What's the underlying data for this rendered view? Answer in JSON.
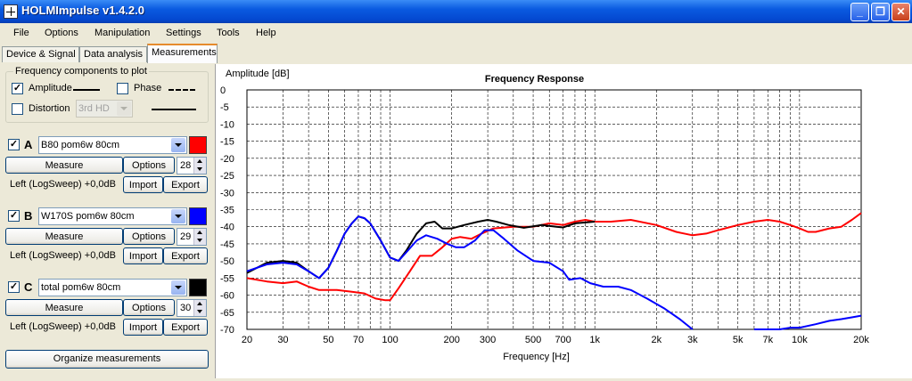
{
  "window": {
    "title": "HOLMImpulse  v1.4.2.0"
  },
  "menu": [
    "File",
    "Options",
    "Manipulation",
    "Settings",
    "Tools",
    "Help"
  ],
  "tabs": [
    "Device & Signal",
    "Data analysis",
    "Measurements"
  ],
  "components": {
    "title": "Frequency components to plot",
    "amplitude": {
      "label": "Amplitude",
      "checked": true
    },
    "phase": {
      "label": "Phase",
      "checked": false
    },
    "distortion": {
      "label": "Distortion",
      "checked": false,
      "select": "3rd HD"
    }
  },
  "measurements": [
    {
      "letter": "A",
      "checked": true,
      "name": "B80 pom6w 80cm",
      "color": "#ff0000",
      "measure_label": "Measure",
      "options_label": "Options",
      "spin": "28",
      "info": "Left (LogSweep) +0,0dB",
      "import_label": "Import",
      "export_label": "Export"
    },
    {
      "letter": "B",
      "checked": true,
      "name": "W170S pom6w 80cm",
      "color": "#0000ff",
      "measure_label": "Measure",
      "options_label": "Options",
      "spin": "29",
      "info": "Left (LogSweep) +0,0dB",
      "import_label": "Import",
      "export_label": "Export"
    },
    {
      "letter": "C",
      "checked": true,
      "name": "total pom6w 80cm",
      "color": "#000000",
      "measure_label": "Measure",
      "options_label": "Options",
      "spin": "30",
      "info": "Left (LogSweep) +0,0dB",
      "import_label": "Import",
      "export_label": "Export"
    }
  ],
  "organize_label": "Organize measurements",
  "chart_data": {
    "type": "line",
    "title": "Frequency Response",
    "xlabel": "Frequency [Hz]",
    "ylabel": "Amplitude [dB]",
    "xscale": "log",
    "xlim": [
      20,
      20000
    ],
    "ylim": [
      -70,
      0
    ],
    "grid": true,
    "xticks": [
      20,
      30,
      50,
      70,
      100,
      200,
      300,
      500,
      700,
      1000,
      2000,
      3000,
      5000,
      7000,
      10000,
      20000
    ],
    "xtick_labels": [
      "20",
      "30",
      "50",
      "70",
      "100",
      "200",
      "300",
      "500",
      "700",
      "1k",
      "2k",
      "3k",
      "5k",
      "7k",
      "10k",
      "20k"
    ],
    "yticks": [
      0,
      -5,
      -10,
      -15,
      -20,
      -25,
      -30,
      -35,
      -40,
      -45,
      -50,
      -55,
      -60,
      -65,
      -70
    ],
    "series": [
      {
        "name": "A",
        "color": "#ff0000",
        "points": [
          [
            20,
            -55
          ],
          [
            25,
            -56
          ],
          [
            30,
            -56.5
          ],
          [
            35,
            -56
          ],
          [
            40,
            -57.5
          ],
          [
            45,
            -58.5
          ],
          [
            55,
            -58.5
          ],
          [
            65,
            -59
          ],
          [
            75,
            -59.5
          ],
          [
            85,
            -61
          ],
          [
            95,
            -61.5
          ],
          [
            100,
            -61.5
          ],
          [
            110,
            -58
          ],
          [
            125,
            -53
          ],
          [
            140,
            -48.5
          ],
          [
            160,
            -48.5
          ],
          [
            180,
            -46
          ],
          [
            200,
            -43.5
          ],
          [
            220,
            -43
          ],
          [
            250,
            -43.5
          ],
          [
            280,
            -42
          ],
          [
            320,
            -40.5
          ],
          [
            350,
            -40.3
          ],
          [
            400,
            -40
          ],
          [
            500,
            -40
          ],
          [
            600,
            -39
          ],
          [
            700,
            -39.5
          ],
          [
            800,
            -38.5
          ],
          [
            900,
            -38
          ],
          [
            1000,
            -38.5
          ],
          [
            1200,
            -38.5
          ],
          [
            1500,
            -38
          ],
          [
            2000,
            -39.5
          ],
          [
            2500,
            -41.5
          ],
          [
            3000,
            -42.5
          ],
          [
            3500,
            -42
          ],
          [
            4000,
            -41
          ],
          [
            5000,
            -39.5
          ],
          [
            6000,
            -38.5
          ],
          [
            7000,
            -38
          ],
          [
            8000,
            -38.5
          ],
          [
            9000,
            -39.5
          ],
          [
            10000,
            -40.5
          ],
          [
            11000,
            -41.5
          ],
          [
            12000,
            -41.5
          ],
          [
            14000,
            -40.5
          ],
          [
            16000,
            -40
          ],
          [
            18000,
            -38
          ],
          [
            20000,
            -36
          ]
        ]
      },
      {
        "name": "B",
        "color": "#0000ff",
        "points": [
          [
            20,
            -53
          ],
          [
            25,
            -51
          ],
          [
            30,
            -50.5
          ],
          [
            35,
            -51
          ],
          [
            40,
            -53
          ],
          [
            45,
            -55
          ],
          [
            50,
            -52
          ],
          [
            55,
            -47
          ],
          [
            60,
            -42
          ],
          [
            65,
            -39
          ],
          [
            70,
            -37
          ],
          [
            75,
            -37.5
          ],
          [
            80,
            -39
          ],
          [
            90,
            -44
          ],
          [
            100,
            -49
          ],
          [
            110,
            -50
          ],
          [
            120,
            -47.5
          ],
          [
            135,
            -44
          ],
          [
            150,
            -42.5
          ],
          [
            170,
            -43.5
          ],
          [
            190,
            -45
          ],
          [
            210,
            -46
          ],
          [
            230,
            -46
          ],
          [
            260,
            -44
          ],
          [
            290,
            -41
          ],
          [
            320,
            -41
          ],
          [
            360,
            -43.5
          ],
          [
            420,
            -47
          ],
          [
            500,
            -50
          ],
          [
            600,
            -50.5
          ],
          [
            700,
            -53
          ],
          [
            750,
            -55.5
          ],
          [
            850,
            -55
          ],
          [
            950,
            -56.5
          ],
          [
            1100,
            -57.5
          ],
          [
            1300,
            -57.5
          ],
          [
            1500,
            -58.5
          ],
          [
            1800,
            -61
          ],
          [
            2200,
            -64
          ],
          [
            2600,
            -67
          ],
          [
            3000,
            -70
          ]
        ],
        "points2": [
          [
            6000,
            -70
          ],
          [
            8000,
            -70
          ],
          [
            9000,
            -69.5
          ],
          [
            10000,
            -69.5
          ],
          [
            12000,
            -68.5
          ],
          [
            14000,
            -67.5
          ],
          [
            16000,
            -67
          ],
          [
            18000,
            -66.5
          ],
          [
            20000,
            -66
          ]
        ]
      },
      {
        "name": "C",
        "color": "#000000",
        "points": [
          [
            20,
            -53.5
          ],
          [
            25,
            -50.5
          ],
          [
            30,
            -50
          ],
          [
            35,
            -50.5
          ],
          [
            40,
            -53
          ],
          [
            45,
            -55
          ],
          [
            50,
            -52
          ],
          [
            55,
            -47
          ],
          [
            60,
            -42
          ],
          [
            65,
            -39
          ],
          [
            70,
            -37
          ],
          [
            75,
            -37.5
          ],
          [
            80,
            -39
          ],
          [
            90,
            -44
          ],
          [
            100,
            -49
          ],
          [
            110,
            -50
          ],
          [
            120,
            -47
          ],
          [
            135,
            -42
          ],
          [
            150,
            -39
          ],
          [
            165,
            -38.5
          ],
          [
            180,
            -40.5
          ],
          [
            200,
            -40.5
          ],
          [
            230,
            -39.5
          ],
          [
            270,
            -38.5
          ],
          [
            300,
            -38
          ],
          [
            330,
            -38.5
          ],
          [
            380,
            -39.5
          ],
          [
            450,
            -40.3
          ],
          [
            550,
            -39.5
          ],
          [
            650,
            -40
          ],
          [
            700,
            -40.2
          ],
          [
            800,
            -39
          ],
          [
            1000,
            -38.5
          ]
        ]
      }
    ]
  }
}
